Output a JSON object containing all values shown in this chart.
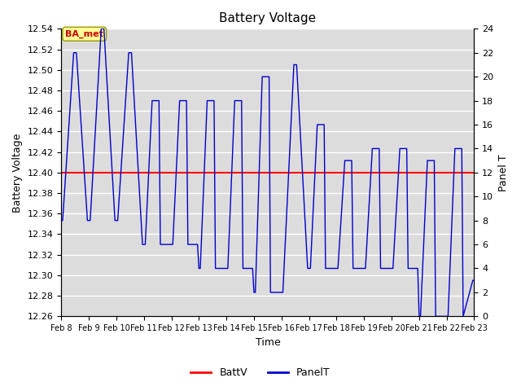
{
  "title": "Battery Voltage",
  "xlabel": "Time",
  "ylabel_left": "Battery Voltage",
  "ylabel_right": "Panel T",
  "ylim_left": [
    12.26,
    12.54
  ],
  "ylim_right": [
    0,
    24
  ],
  "yticks_left": [
    12.26,
    12.28,
    12.3,
    12.32,
    12.34,
    12.36,
    12.38,
    12.4,
    12.42,
    12.44,
    12.46,
    12.48,
    12.5,
    12.52,
    12.54
  ],
  "yticks_right": [
    0,
    2,
    4,
    6,
    8,
    10,
    12,
    14,
    16,
    18,
    20,
    22,
    24
  ],
  "batt_v": 12.4,
  "batt_color": "#ff0000",
  "panel_color": "#0000cc",
  "annotation_text": "BA_met",
  "annotation_color": "#cc0000",
  "annotation_bg": "#ffff99",
  "bg_color": "#dcdcdc",
  "legend_battv": "BattV",
  "legend_panelt": "PanelT",
  "x_tick_labels": [
    "Feb 8",
    "Feb 9",
    "Feb 10",
    "Feb 11",
    "Feb 12",
    "Feb 13",
    "Feb 14",
    "Feb 15",
    "Feb 16",
    "Feb 17",
    "Feb 18",
    "Feb 19",
    "Feb 20",
    "Feb 21",
    "Feb 22",
    "Feb 23"
  ],
  "panel_t_x": [
    0.0,
    0.05,
    0.45,
    0.55,
    0.95,
    1.0,
    1.05,
    1.45,
    1.55,
    1.95,
    2.0,
    2.05,
    2.45,
    2.55,
    2.95,
    3.0,
    3.05,
    3.3,
    3.35,
    3.55,
    3.6,
    3.95,
    4.0,
    4.05,
    4.3,
    4.35,
    4.55,
    4.6,
    4.95,
    5.0,
    5.05,
    5.3,
    5.35,
    5.55,
    5.6,
    5.95,
    6.0,
    6.05,
    6.3,
    6.35,
    6.55,
    6.6,
    6.95,
    7.0,
    7.05,
    7.3,
    7.35,
    7.55,
    7.6,
    7.95,
    8.0,
    8.05,
    8.45,
    8.55,
    8.95,
    9.0,
    9.05,
    9.3,
    9.35,
    9.55,
    9.6,
    9.95,
    10.0,
    10.05,
    10.3,
    10.35,
    10.55,
    10.6,
    10.95,
    11.0,
    11.05,
    11.3,
    11.35,
    11.55,
    11.6,
    11.95,
    12.0,
    12.05,
    12.3,
    12.35,
    12.55,
    12.6,
    12.95,
    13.0,
    13.05,
    13.3,
    13.35,
    13.55,
    13.6,
    13.95,
    14.0,
    14.05,
    14.3,
    14.35,
    14.55,
    14.6,
    14.95,
    15.0
  ],
  "panel_t_y": [
    8,
    8,
    22,
    22,
    8,
    8,
    8,
    24,
    24,
    8,
    8,
    8,
    22,
    22,
    6,
    6,
    6,
    18,
    18,
    18,
    6,
    6,
    6,
    6,
    18,
    18,
    18,
    6,
    6,
    4,
    4,
    18,
    18,
    18,
    4,
    4,
    4,
    4,
    18,
    18,
    18,
    4,
    4,
    2,
    2,
    20,
    20,
    20,
    2,
    2,
    2,
    2,
    21,
    21,
    4,
    4,
    4,
    16,
    16,
    16,
    4,
    4,
    4,
    4,
    13,
    13,
    13,
    4,
    4,
    4,
    4,
    14,
    14,
    14,
    4,
    4,
    4,
    4,
    14,
    14,
    14,
    4,
    4,
    0,
    0,
    13,
    13,
    13,
    0,
    0,
    0,
    0,
    14,
    14,
    14,
    0,
    3,
    3
  ]
}
